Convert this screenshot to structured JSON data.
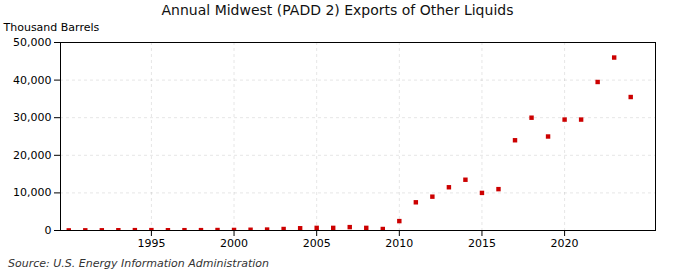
{
  "chart_data": {
    "type": "scatter",
    "title": "Annual Midwest (PADD 2) Exports of Other Liquids",
    "ylabel": "Thousand Barrels",
    "source": "Source: U.S. Energy Information Administration",
    "x": [
      1990,
      1991,
      1992,
      1993,
      1994,
      1995,
      1996,
      1997,
      1998,
      1999,
      2000,
      2001,
      2002,
      2003,
      2004,
      2005,
      2006,
      2007,
      2008,
      2009,
      2010,
      2011,
      2012,
      2013,
      2014,
      2015,
      2016,
      2017,
      2018,
      2019,
      2020,
      2021,
      2022,
      2023,
      2024
    ],
    "values": [
      30,
      50,
      60,
      80,
      100,
      100,
      80,
      90,
      100,
      130,
      150,
      200,
      250,
      400,
      600,
      700,
      700,
      900,
      700,
      400,
      2500,
      7500,
      9000,
      11500,
      13500,
      10000,
      11000,
      24000,
      30000,
      25000,
      29500,
      29500,
      39500,
      46000,
      35500
    ],
    "color": "#cc0000",
    "marker": "square",
    "xlim": [
      1989.5,
      2025.5
    ],
    "xticks": [
      1995,
      2000,
      2005,
      2010,
      2015,
      2020
    ],
    "ylim": [
      0,
      50000
    ],
    "yticks": [
      0,
      {
        "value": 10000,
        "label": "10,000"
      },
      {
        "value": 20000,
        "label": "20,000"
      },
      {
        "value": 30000,
        "label": "30,000"
      },
      {
        "value": 40000,
        "label": "40,000"
      },
      {
        "value": 50000,
        "label": "50,000"
      }
    ],
    "grid": true
  }
}
